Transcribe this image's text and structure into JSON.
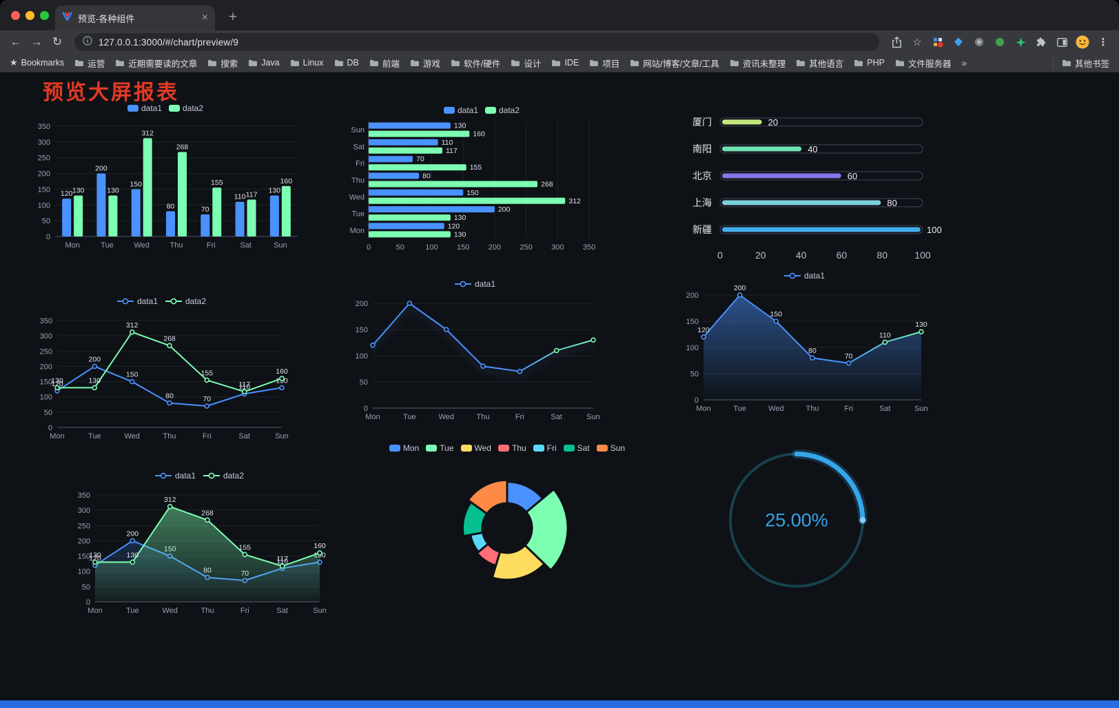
{
  "browser": {
    "tab": {
      "title": "预览-各种组件"
    },
    "url": "127.0.0.1:3000/#/chart/preview/9",
    "glyphs": {
      "back": "←",
      "forward": "→",
      "reload": "↻",
      "close": "×",
      "new_tab": "+",
      "menu": "⋮",
      "star": "☆",
      "bookmarks_star": "★"
    },
    "bookmarks_bar": {
      "label": "Bookmarks",
      "items": [
        "运营",
        "近期需要读的文章",
        "搜索",
        "Java",
        "Linux",
        "DB",
        "前端",
        "游戏",
        "软件/硬件",
        "设计",
        "IDE",
        "项目",
        "网站/博客/文章/工具",
        "资讯未整理",
        "其他语言",
        "PHP",
        "文件服务器"
      ],
      "overflow": "»",
      "other": "其他书签"
    }
  },
  "page": {
    "title": "预览大屏报表",
    "title_color": "#e23a24",
    "background": "#0e1116",
    "footer_bar_color": "#2a6de0"
  },
  "chart_data": [
    {
      "name": "grouped-bar-chart",
      "type": "bar",
      "categories": [
        "Mon",
        "Tue",
        "Wed",
        "Thu",
        "Fri",
        "Sat",
        "Sun"
      ],
      "series": [
        {
          "name": "data1",
          "color": "#4992ff",
          "values": [
            120,
            200,
            150,
            80,
            70,
            110,
            130
          ]
        },
        {
          "name": "data2",
          "color": "#7cffb2",
          "values": [
            130,
            130,
            312,
            268,
            155,
            117,
            160
          ]
        }
      ],
      "ylim": [
        0,
        350
      ],
      "ystep": 50,
      "value_labels": true,
      "legend_position": "top",
      "grid": true
    },
    {
      "name": "horizontal-bar-chart",
      "type": "hbar",
      "categories": [
        "Mon",
        "Tue",
        "Wed",
        "Thu",
        "Fri",
        "Sat",
        "Sun"
      ],
      "series": [
        {
          "name": "data1",
          "color": "#4992ff",
          "values": [
            120,
            200,
            150,
            80,
            70,
            110,
            130
          ]
        },
        {
          "name": "data2",
          "color": "#7cffb2",
          "values": [
            130,
            130,
            312,
            268,
            155,
            117,
            160
          ]
        }
      ],
      "xlim": [
        0,
        350
      ],
      "xstep": 50,
      "value_labels": true,
      "legend_position": "top",
      "grid": true
    },
    {
      "name": "capsule-progress-chart",
      "type": "capsule",
      "items": [
        {
          "label": "厦门",
          "value": 20,
          "color": "#c4e87f"
        },
        {
          "label": "南阳",
          "value": 40,
          "color": "#6fe0b2"
        },
        {
          "label": "北京",
          "value": 60,
          "color": "#8179e8"
        },
        {
          "label": "上海",
          "value": 80,
          "color": "#7ad0d8"
        },
        {
          "label": "新疆",
          "value": 100,
          "color": "#41aee8"
        }
      ],
      "xlim": [
        0,
        100
      ],
      "xticks": [
        0,
        20,
        40,
        60,
        80,
        100
      ]
    },
    {
      "name": "dual-line-chart",
      "type": "line",
      "categories": [
        "Mon",
        "Tue",
        "Wed",
        "Thu",
        "Fri",
        "Sat",
        "Sun"
      ],
      "series": [
        {
          "name": "data1",
          "color": "#4992ff",
          "values": [
            120,
            200,
            150,
            80,
            70,
            110,
            130
          ]
        },
        {
          "name": "data2",
          "color": "#7cffb2",
          "values": [
            130,
            130,
            312,
            268,
            155,
            117,
            160
          ]
        }
      ],
      "ylim": [
        0,
        350
      ],
      "ystep": 50,
      "value_labels": true,
      "legend_position": "top",
      "grid": true
    },
    {
      "name": "gradient-line-chart",
      "type": "line",
      "categories": [
        "Mon",
        "Tue",
        "Wed",
        "Thu",
        "Fri",
        "Sat",
        "Sun"
      ],
      "series": [
        {
          "name": "data1",
          "color": "#4992ff",
          "gradient": [
            "#4992ff",
            "#7cffb2"
          ],
          "shadow": true,
          "values": [
            120,
            200,
            150,
            80,
            70,
            110,
            130
          ]
        }
      ],
      "ylim": [
        0,
        200
      ],
      "ystep": 50,
      "value_labels": false,
      "legend_position": "top",
      "grid": true
    },
    {
      "name": "area-line-chart",
      "type": "line",
      "categories": [
        "Mon",
        "Tue",
        "Wed",
        "Thu",
        "Fri",
        "Sat",
        "Sun"
      ],
      "series": [
        {
          "name": "data1",
          "color": "#4992ff",
          "gradient": [
            "#4992ff",
            "#7cffb2"
          ],
          "area": [
            0.5,
            0.02
          ],
          "values": [
            120,
            200,
            150,
            80,
            70,
            110,
            130
          ]
        }
      ],
      "ylim": [
        0,
        200
      ],
      "ystep": 50,
      "value_labels": true,
      "legend_position": "top",
      "grid": true
    },
    {
      "name": "dual-area-line-chart",
      "type": "line",
      "categories": [
        "Mon",
        "Tue",
        "Wed",
        "Thu",
        "Fri",
        "Sat",
        "Sun"
      ],
      "series": [
        {
          "name": "data1",
          "color": "#4992ff",
          "area": [
            0.2,
            0
          ],
          "values": [
            120,
            200,
            150,
            80,
            70,
            110,
            130
          ]
        },
        {
          "name": "data2",
          "color": "#7cffb2",
          "area": [
            0.45,
            0.05
          ],
          "values": [
            130,
            130,
            312,
            268,
            155,
            117,
            160
          ]
        }
      ],
      "ylim": [
        0,
        350
      ],
      "ystep": 50,
      "value_labels": true,
      "legend_position": "top",
      "grid": true
    },
    {
      "name": "rose-pie-chart",
      "type": "rose",
      "categories": [
        "Mon",
        "Tue",
        "Wed",
        "Thu",
        "Fri",
        "Sat",
        "Sun"
      ],
      "values": [
        120,
        200,
        150,
        80,
        70,
        110,
        130
      ],
      "colors": [
        "#4992ff",
        "#7cffb2",
        "#fddd60",
        "#ff6e76",
        "#58d9f9",
        "#05c091",
        "#ff8a45"
      ],
      "inner_radius": 36,
      "max_radius": 88,
      "legend_position": "top"
    },
    {
      "name": "gauge-progress",
      "type": "gauge",
      "value": 25,
      "label": "25.00%",
      "color": "#35a6e8",
      "track_color": "#17424d"
    }
  ]
}
